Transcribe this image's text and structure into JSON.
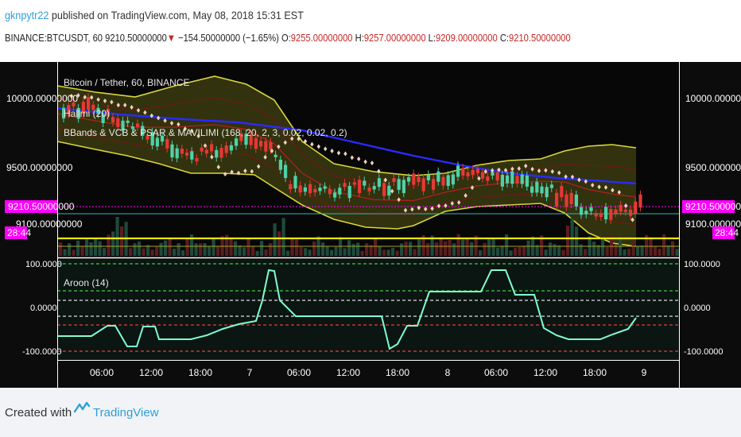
{
  "header": {
    "author": "gknpytr22",
    "published_text": " published on TradingView.com, May 08, 2018 15:31 EST"
  },
  "symbol_bar": {
    "symbol": "BINANCE:BTCUSDT, 60",
    "last": "9210.50000000",
    "change": "−154.50000000 (−1.65%)",
    "o_label": "O:",
    "o_value": "9255.00000000",
    "h_label": "H:",
    "h_value": "9257.00000000",
    "l_label": "L:",
    "l_value": "9209.00000000",
    "c_label": "C:",
    "c_value": "9210.50000000"
  },
  "legend": {
    "title": "Bitcoin / Tether, 60, BINANCE",
    "line2": "Hallmi (20)",
    "line3": "BBands & VCB & PSAR & MAVILIMI (168, 20, 2, 3, 0.02, 0.02, 0.2)",
    "oscillator": "Aroon (14)"
  },
  "price_axis": {
    "left_ticks": [
      "10000.00000000",
      "9500.00000000",
      "9100.00000000"
    ],
    "right_ticks": [
      "10000.00000000",
      "9500.00000000",
      "9100.00000000"
    ],
    "price_tag": "9210.50000000",
    "timer": "28:44"
  },
  "osc_axis": {
    "ticks": [
      "100.0000",
      "0.0000",
      "-100.0000"
    ]
  },
  "time_axis": [
    "06:00",
    "12:00",
    "18:00",
    "7",
    "06:00",
    "12:00",
    "18:00",
    "8",
    "06:00",
    "12:00",
    "18:00",
    "9"
  ],
  "footer": {
    "created_with": "Created with",
    "brand": "TradingView"
  },
  "colors": {
    "background": "#0c0c0c",
    "bull_candle": "#4fd1a8",
    "bear_candle": "#e53935",
    "band": "#d8d83a",
    "ma_blue": "#2a2aff",
    "psar": "#f0d0c0",
    "price_tag_bg": "#ff00ff",
    "aroon": "#7fffd4"
  }
}
